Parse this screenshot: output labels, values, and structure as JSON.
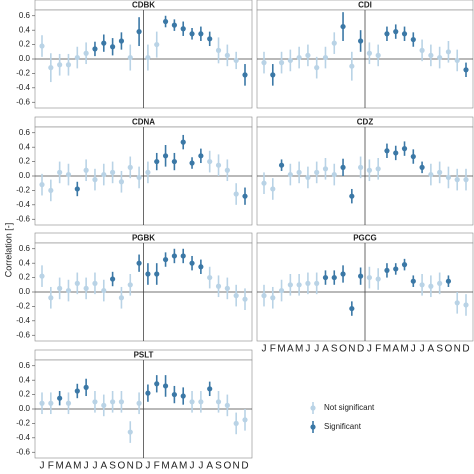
{
  "chart_data": [
    {
      "type": "errorbar",
      "title": "CDBK",
      "ylim": [
        -0.68,
        0.68
      ],
      "yticks": [
        -0.6,
        -0.4,
        -0.2,
        {
          "value": 0,
          "label": "0.0"
        },
        0.2,
        0.4,
        0.6
      ],
      "values": [
        0.18,
        -0.12,
        -0.08,
        -0.08,
        0.02,
        0.08,
        0.14,
        0.22,
        0.17,
        0.25,
        0.02,
        0.38,
        0.02,
        0.2,
        0.52,
        0.47,
        0.42,
        0.35,
        0.35,
        0.28,
        0.12,
        0.05,
        -0.02,
        -0.22
      ],
      "errors": [
        0.15,
        0.2,
        0.15,
        0.15,
        0.15,
        0.15,
        0.1,
        0.12,
        0.12,
        0.12,
        0.18,
        0.2,
        0.18,
        0.18,
        0.08,
        0.08,
        0.1,
        0.08,
        0.1,
        0.1,
        0.18,
        0.15,
        0.12,
        0.15
      ],
      "significant": [
        false,
        false,
        false,
        false,
        false,
        false,
        true,
        true,
        true,
        true,
        false,
        true,
        false,
        false,
        true,
        true,
        true,
        true,
        true,
        true,
        false,
        false,
        false,
        true
      ]
    },
    {
      "type": "errorbar",
      "title": "CDI",
      "ylim": [
        -0.68,
        0.68
      ],
      "values": [
        -0.05,
        -0.22,
        -0.05,
        -0.02,
        0.02,
        0.05,
        -0.12,
        0.02,
        0.22,
        0.45,
        -0.1,
        0.25,
        0.08,
        0.05,
        0.35,
        0.38,
        0.35,
        0.27,
        0.12,
        0.05,
        0.02,
        0.1,
        -0.02,
        -0.15
      ],
      "errors": [
        0.15,
        0.15,
        0.15,
        0.15,
        0.15,
        0.15,
        0.15,
        0.15,
        0.15,
        0.2,
        0.2,
        0.15,
        0.15,
        0.15,
        0.1,
        0.1,
        0.1,
        0.1,
        0.15,
        0.15,
        0.15,
        0.15,
        0.15,
        0.1
      ],
      "significant": [
        false,
        true,
        false,
        false,
        false,
        false,
        false,
        false,
        false,
        true,
        false,
        true,
        false,
        false,
        true,
        true,
        true,
        true,
        false,
        false,
        false,
        false,
        false,
        true
      ]
    },
    {
      "type": "errorbar",
      "title": "CDNA",
      "ylim": [
        -0.68,
        0.68
      ],
      "yticks": [
        -0.6,
        -0.4,
        -0.2,
        {
          "value": 0,
          "label": "0.0"
        },
        0.2,
        0.4,
        0.6
      ],
      "values": [
        -0.12,
        -0.2,
        0.05,
        0.02,
        -0.18,
        0.08,
        -0.05,
        0.02,
        0.05,
        -0.08,
        0.12,
        -0.02,
        0.05,
        0.2,
        0.28,
        0.2,
        0.47,
        0.18,
        0.28,
        0.2,
        0.15,
        0.08,
        -0.25,
        -0.28
      ],
      "errors": [
        0.15,
        0.15,
        0.15,
        0.15,
        0.1,
        0.15,
        0.15,
        0.15,
        0.15,
        0.15,
        0.15,
        0.15,
        0.15,
        0.12,
        0.15,
        0.12,
        0.1,
        0.08,
        0.1,
        0.15,
        0.15,
        0.15,
        0.15,
        0.12
      ],
      "significant": [
        false,
        false,
        false,
        false,
        true,
        false,
        false,
        false,
        false,
        false,
        false,
        false,
        false,
        true,
        true,
        true,
        true,
        true,
        true,
        false,
        false,
        false,
        false,
        true
      ]
    },
    {
      "type": "errorbar",
      "title": "CDZ",
      "ylim": [
        -0.68,
        0.68
      ],
      "values": [
        -0.1,
        -0.18,
        0.15,
        0.02,
        0.05,
        -0.02,
        0.05,
        0.1,
        0.02,
        0.12,
        -0.28,
        0.12,
        0.08,
        0.1,
        0.35,
        0.32,
        0.38,
        0.27,
        0.12,
        0.02,
        0.05,
        -0.02,
        -0.05,
        -0.05
      ],
      "errors": [
        0.15,
        0.15,
        0.08,
        0.15,
        0.15,
        0.15,
        0.15,
        0.15,
        0.15,
        0.12,
        0.1,
        0.15,
        0.15,
        0.15,
        0.1,
        0.1,
        0.1,
        0.1,
        0.08,
        0.15,
        0.15,
        0.15,
        0.15,
        0.15
      ],
      "significant": [
        false,
        false,
        true,
        false,
        false,
        false,
        false,
        false,
        false,
        true,
        true,
        false,
        false,
        false,
        true,
        true,
        true,
        true,
        true,
        false,
        false,
        false,
        false,
        false
      ]
    },
    {
      "type": "errorbar",
      "title": "PGBK",
      "ylim": [
        -0.68,
        0.68
      ],
      "yticks": [
        -0.6,
        -0.4,
        -0.2,
        {
          "value": 0,
          "label": "0.0"
        },
        0.2,
        0.4,
        0.6
      ],
      "values": [
        0.22,
        -0.08,
        0.05,
        0.02,
        0.12,
        0.05,
        0.12,
        0.02,
        0.18,
        -0.08,
        0.1,
        0.4,
        0.25,
        0.25,
        0.45,
        0.5,
        0.5,
        0.4,
        0.35,
        0.2,
        0.08,
        0.05,
        -0.05,
        -0.1
      ],
      "errors": [
        0.15,
        0.15,
        0.15,
        0.15,
        0.15,
        0.15,
        0.15,
        0.15,
        0.1,
        0.15,
        0.15,
        0.12,
        0.15,
        0.15,
        0.1,
        0.1,
        0.1,
        0.1,
        0.1,
        0.15,
        0.15,
        0.15,
        0.15,
        0.15
      ],
      "significant": [
        false,
        false,
        false,
        false,
        false,
        false,
        false,
        false,
        true,
        false,
        false,
        true,
        true,
        true,
        true,
        true,
        true,
        true,
        true,
        false,
        false,
        false,
        false,
        false
      ]
    },
    {
      "type": "errorbar",
      "title": "PGCG",
      "ylim": [
        -0.68,
        0.68
      ],
      "values": [
        -0.05,
        -0.08,
        0.02,
        0.1,
        0.1,
        0.12,
        0.12,
        0.2,
        0.2,
        0.25,
        -0.23,
        0.22,
        0.2,
        0.18,
        0.3,
        0.32,
        0.38,
        0.15,
        0.1,
        0.08,
        0.12,
        0.15,
        -0.15,
        -0.18
      ],
      "errors": [
        0.15,
        0.15,
        0.15,
        0.15,
        0.15,
        0.15,
        0.15,
        0.1,
        0.1,
        0.12,
        0.1,
        0.12,
        0.15,
        0.15,
        0.1,
        0.08,
        0.08,
        0.08,
        0.15,
        0.15,
        0.15,
        0.08,
        0.15,
        0.15
      ],
      "significant": [
        false,
        false,
        false,
        false,
        false,
        false,
        false,
        true,
        true,
        true,
        true,
        true,
        false,
        false,
        true,
        true,
        true,
        true,
        false,
        false,
        false,
        true,
        false,
        false
      ],
      "categories": [
        "J",
        "F",
        "M",
        "A",
        "M",
        "J",
        "J",
        "A",
        "S",
        "O",
        "N",
        "D",
        "J",
        "F",
        "M",
        "A",
        "M",
        "J",
        "J",
        "A",
        "S",
        "O",
        "N",
        "D"
      ],
      "category_colors": [
        "#b03a3a",
        "#b03a3a",
        "#b03a3a",
        "#b03a3a",
        "#b03a3a",
        "#b03a3a",
        "#b03a3a",
        "#b03a3a",
        "#b03a3a",
        "#b03a3a",
        "#b03a3a",
        "#b03a3a",
        "#333333",
        "#333333",
        "#333333",
        "#333333",
        "#333333",
        "#333333",
        "#333333",
        "#333333",
        "#333333",
        "#333333",
        "#333333",
        "#333333"
      ]
    },
    {
      "type": "errorbar",
      "title": "PSLT",
      "ylim": [
        -0.68,
        0.68
      ],
      "yticks": [
        -0.6,
        -0.4,
        -0.2,
        {
          "value": 0,
          "label": "0.0"
        },
        0.2,
        0.4,
        0.6
      ],
      "values": [
        0.08,
        0.08,
        0.15,
        0.08,
        0.25,
        0.3,
        0.1,
        0.05,
        0.1,
        0.1,
        -0.32,
        0.08,
        0.22,
        0.35,
        0.32,
        0.2,
        0.18,
        0.1,
        0.1,
        0.28,
        0.1,
        0.05,
        -0.2,
        -0.15
      ],
      "errors": [
        0.15,
        0.15,
        0.1,
        0.15,
        0.1,
        0.12,
        0.15,
        0.15,
        0.15,
        0.15,
        0.15,
        0.15,
        0.12,
        0.12,
        0.15,
        0.12,
        0.12,
        0.15,
        0.15,
        0.1,
        0.15,
        0.15,
        0.15,
        0.15
      ],
      "significant": [
        false,
        false,
        true,
        false,
        true,
        true,
        false,
        false,
        false,
        false,
        false,
        false,
        true,
        true,
        true,
        true,
        true,
        false,
        false,
        true,
        false,
        false,
        false,
        false
      ],
      "categories": [
        "J",
        "F",
        "M",
        "A",
        "M",
        "J",
        "J",
        "A",
        "S",
        "O",
        "N",
        "D",
        "J",
        "F",
        "M",
        "A",
        "M",
        "J",
        "J",
        "A",
        "S",
        "O",
        "N",
        "D"
      ],
      "category_colors": [
        "#b03a3a",
        "#b03a3a",
        "#b03a3a",
        "#b03a3a",
        "#b03a3a",
        "#b03a3a",
        "#b03a3a",
        "#b03a3a",
        "#b03a3a",
        "#b03a3a",
        "#b03a3a",
        "#b03a3a",
        "#333333",
        "#333333",
        "#333333",
        "#333333",
        "#333333",
        "#333333",
        "#333333",
        "#333333",
        "#333333",
        "#333333",
        "#333333",
        "#333333"
      ]
    }
  ],
  "y_label": "Correlation [-]",
  "legend": [
    {
      "label": "Not significant",
      "color": "#b9d3e6"
    },
    {
      "label": "Significant",
      "color": "#3b78a6"
    }
  ]
}
